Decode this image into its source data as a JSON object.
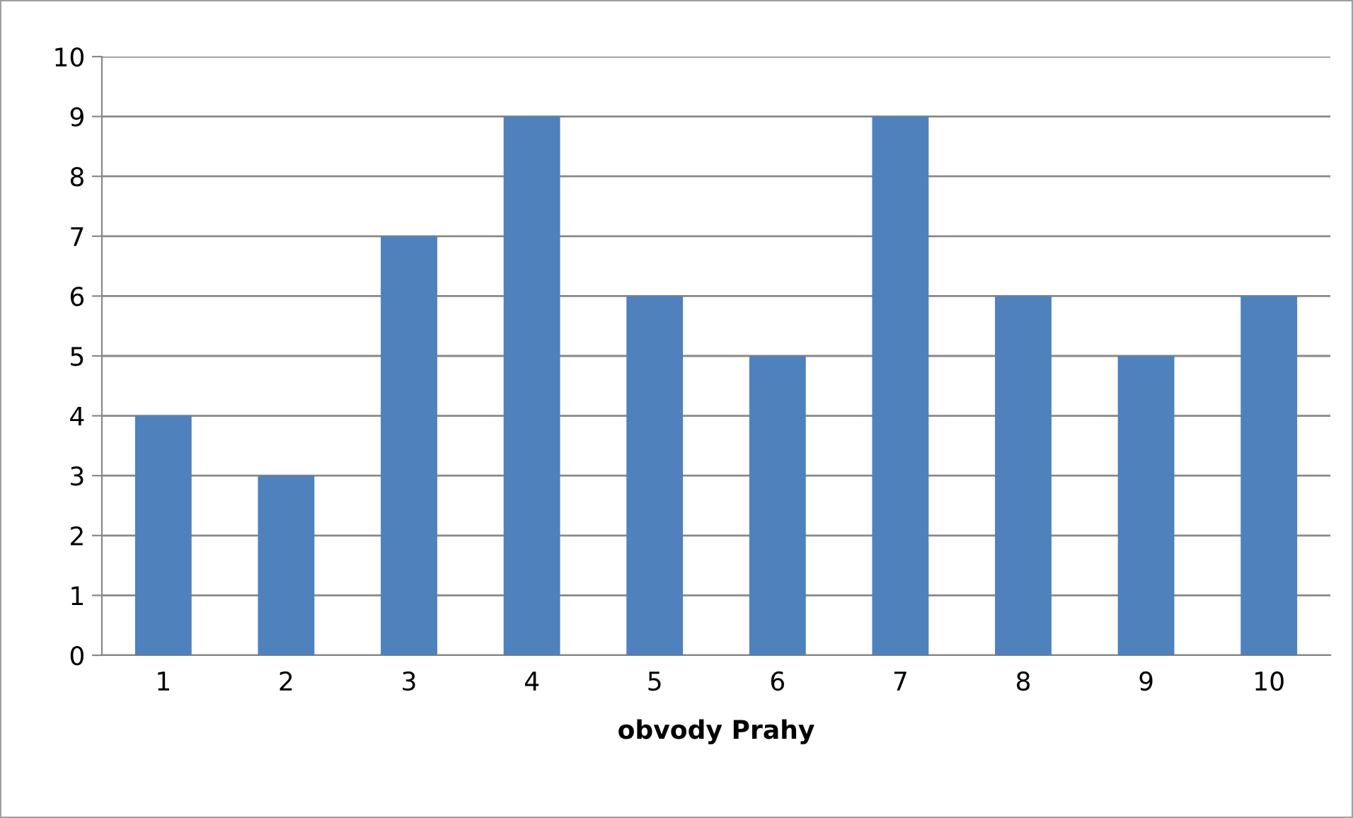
{
  "chart_data": {
    "type": "bar",
    "xlabel": "obvody Prahy",
    "categories": [
      "1",
      "2",
      "3",
      "4",
      "5",
      "6",
      "7",
      "8",
      "9",
      "10"
    ],
    "values": [
      4,
      3,
      7,
      9,
      6,
      5,
      9,
      6,
      5,
      6
    ],
    "color": "#4f81bd",
    "ylim": [
      0,
      10
    ],
    "yticks": [
      0,
      1,
      2,
      3,
      4,
      5,
      6,
      7,
      8,
      9,
      10
    ],
    "grid": "y",
    "legend": false
  }
}
